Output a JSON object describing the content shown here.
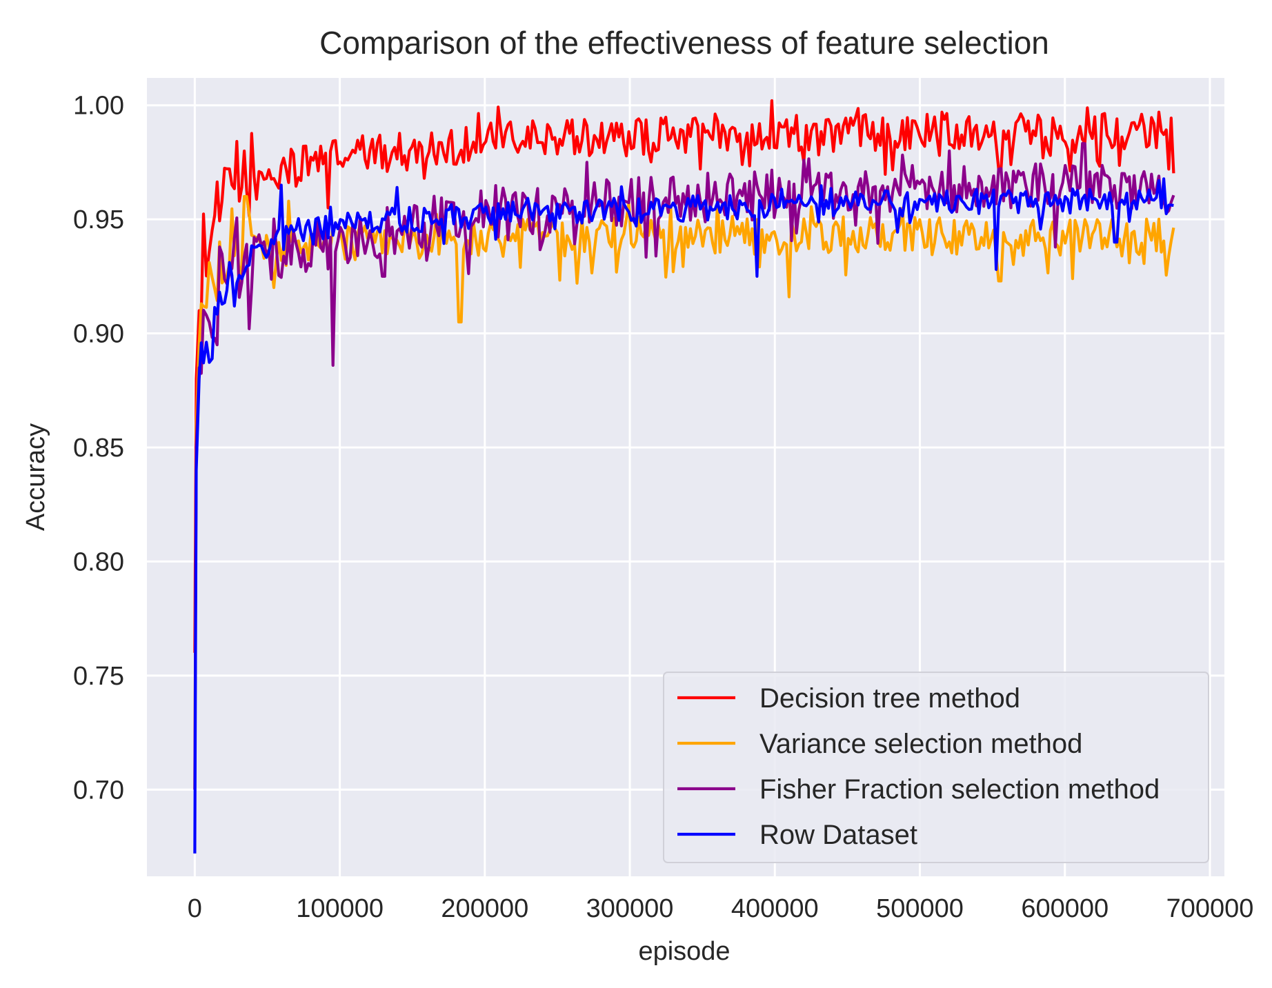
{
  "chart_data": {
    "type": "line",
    "title": "Comparison of the effectiveness of feature selection",
    "xlabel": "episode",
    "ylabel": "Accuracy",
    "xlim": [
      -33000,
      710000
    ],
    "ylim": [
      0.662,
      1.012
    ],
    "xticks": [
      0,
      100000,
      200000,
      300000,
      400000,
      500000,
      600000,
      700000
    ],
    "xtick_labels": [
      "0",
      "100000",
      "200000",
      "300000",
      "400000",
      "500000",
      "600000",
      "700000"
    ],
    "yticks": [
      0.7,
      0.75,
      0.8,
      0.85,
      0.9,
      0.95,
      1.0
    ],
    "ytick_labels": [
      "0.70",
      "0.75",
      "0.80",
      "0.85",
      "0.90",
      "0.95",
      "1.00"
    ],
    "grid": true,
    "legend_position": "lower-right",
    "background": "#e9eaf2",
    "series": [
      {
        "name": "Decision tree method",
        "color": "#ff0000",
        "x": [
          0,
          1000,
          3000,
          6000,
          10000,
          20000,
          40000,
          60000,
          80000,
          100000,
          150000,
          200000,
          250000,
          300000,
          350000,
          400000,
          450000,
          500000,
          550000,
          600000,
          650000,
          675000
        ],
        "y": [
          0.76,
          0.88,
          0.91,
          0.93,
          0.945,
          0.96,
          0.965,
          0.97,
          0.975,
          0.978,
          0.98,
          0.984,
          0.986,
          0.986,
          0.988,
          0.988,
          0.988,
          0.989,
          0.989,
          0.989,
          0.99,
          0.988
        ],
        "noise": 0.006,
        "dips": [
          [
            92000,
            0.955
          ],
          [
            158000,
            0.968
          ],
          [
            348000,
            0.972
          ],
          [
            378000,
            0.974
          ],
          [
            420000,
            0.975
          ],
          [
            513000,
            0.978
          ],
          [
            555000,
            0.972
          ],
          [
            590000,
            0.978
          ],
          [
            672000,
            0.972
          ]
        ],
        "peaks": [
          [
            515000,
            0.997
          ],
          [
            665000,
            0.997
          ],
          [
            505000,
            0.996
          ]
        ]
      },
      {
        "name": "Variance selection method",
        "color": "#ffa500",
        "x": [
          0,
          1000,
          3000,
          6000,
          10000,
          20000,
          40000,
          60000,
          80000,
          100000,
          150000,
          200000,
          250000,
          300000,
          350000,
          400000,
          450000,
          500000,
          550000,
          600000,
          650000,
          675000
        ],
        "y": [
          0.7,
          0.86,
          0.895,
          0.91,
          0.92,
          0.93,
          0.935,
          0.938,
          0.939,
          0.94,
          0.941,
          0.942,
          0.942,
          0.943,
          0.943,
          0.943,
          0.943,
          0.943,
          0.942,
          0.942,
          0.942,
          0.942
        ],
        "noise": 0.006,
        "dips": [
          [
            183000,
            0.905
          ],
          [
            410000,
            0.916
          ],
          [
            263000,
            0.922
          ],
          [
            555000,
            0.923
          ],
          [
            605000,
            0.924
          ],
          [
            330000,
            0.927
          ]
        ],
        "peaks": [
          [
            35000,
            0.96
          ],
          [
            65000,
            0.958
          ]
        ]
      },
      {
        "name": "Fisher Fraction selection method",
        "color": "#8b008b",
        "x": [
          0,
          1000,
          3000,
          6000,
          10000,
          20000,
          40000,
          60000,
          80000,
          100000,
          150000,
          200000,
          250000,
          300000,
          350000,
          400000,
          450000,
          500000,
          550000,
          600000,
          650000,
          675000
        ],
        "y": [
          0.7,
          0.85,
          0.885,
          0.9,
          0.91,
          0.925,
          0.932,
          0.936,
          0.938,
          0.94,
          0.948,
          0.952,
          0.955,
          0.957,
          0.959,
          0.96,
          0.962,
          0.963,
          0.964,
          0.963,
          0.963,
          0.962
        ],
        "noise": 0.008,
        "dips": [
          [
            95000,
            0.886
          ],
          [
            15000,
            0.895
          ],
          [
            38000,
            0.902
          ],
          [
            130000,
            0.925
          ]
        ],
        "peaks": [
          [
            520000,
            0.98
          ],
          [
            420000,
            0.976
          ],
          [
            270000,
            0.975
          ]
        ]
      },
      {
        "name": "Row Dataset",
        "color": "#0000ff",
        "x": [
          0,
          1000,
          3000,
          6000,
          10000,
          20000,
          40000,
          60000,
          80000,
          100000,
          150000,
          200000,
          250000,
          300000,
          350000,
          400000,
          450000,
          500000,
          550000,
          600000,
          650000,
          675000
        ],
        "y": [
          0.672,
          0.84,
          0.88,
          0.895,
          0.905,
          0.92,
          0.935,
          0.942,
          0.945,
          0.948,
          0.95,
          0.952,
          0.953,
          0.954,
          0.955,
          0.956,
          0.957,
          0.957,
          0.958,
          0.958,
          0.958,
          0.958
        ],
        "noise": 0.004,
        "dips": [
          [
            388000,
            0.925
          ],
          [
            552000,
            0.928
          ],
          [
            635000,
            0.94
          ]
        ],
        "peaks": [
          [
            60000,
            0.965
          ],
          [
            140000,
            0.964
          ],
          [
            665000,
            0.967
          ]
        ]
      }
    ]
  }
}
